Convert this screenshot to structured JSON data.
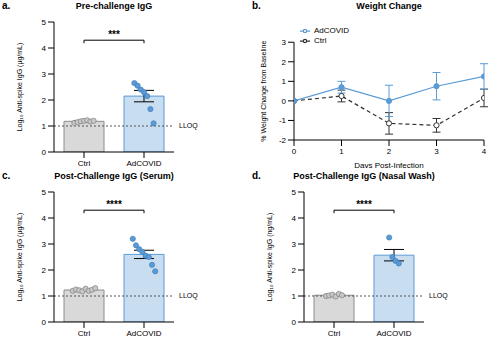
{
  "chart_data": [
    {
      "panel": "a.",
      "type": "bar",
      "title": "Pre-challenge IgG",
      "y_label": "Log₁₀ Anti-spike IgG (µg/mL)",
      "categories": [
        "Ctrl",
        "AdCOVID"
      ],
      "values": [
        1.18,
        2.15
      ],
      "errors": [
        0.03,
        0.22
      ],
      "points": [
        [
          1.12,
          1.15,
          1.18,
          1.2,
          1.22,
          1.17,
          1.2
        ],
        [
          2.65,
          2.55,
          2.4,
          2.3,
          2.15,
          1.65,
          1.1
        ]
      ],
      "colors": [
        "#d9d9d9",
        "#c9ddf1"
      ],
      "ylim": [
        0,
        5
      ],
      "yticks": [
        0,
        1,
        2,
        3,
        4,
        5
      ],
      "reference_line": {
        "value": 1,
        "label": "LLOQ"
      },
      "annotation": "***"
    },
    {
      "panel": "b.",
      "type": "line",
      "title": "Weight Change",
      "x_label": "Days Post-Infection",
      "y_label": "% Weight Change from Baseline",
      "x": [
        0,
        1,
        2,
        3,
        4
      ],
      "series": [
        {
          "name": "Ctrl",
          "color": "#333333",
          "line_style": "dashed",
          "marker": "open circle",
          "values": [
            0,
            0.25,
            -1.15,
            -1.25,
            0.15
          ],
          "errors": [
            0,
            0.3,
            0.55,
            0.35,
            0.45
          ]
        },
        {
          "name": "AdCOVID",
          "color": "#5b9bd5",
          "line_style": "solid",
          "marker": "circle",
          "values": [
            0,
            0.7,
            0.0,
            0.75,
            1.25
          ],
          "errors": [
            0,
            0.3,
            0.8,
            0.7,
            0.65
          ]
        }
      ],
      "xlim": [
        0,
        4
      ],
      "xticks": [
        0,
        1,
        2,
        3,
        4
      ],
      "ylim": [
        -2,
        3
      ],
      "yticks": [
        -2,
        -1,
        0,
        1,
        2,
        3
      ],
      "legend": "upper left"
    },
    {
      "panel": "c.",
      "type": "bar",
      "title": "Post-Challenge IgG (Serum)",
      "y_label": "Log₁₀ Anti-spike IgG (µg/mL)",
      "categories": [
        "Ctrl",
        "AdCOVID"
      ],
      "values": [
        1.23,
        2.6
      ],
      "errors": [
        0.02,
        0.16
      ],
      "points": [
        [
          1.2,
          1.25,
          1.22,
          1.18,
          1.28,
          1.2,
          1.24,
          1.3
        ],
        [
          3.2,
          2.95,
          2.8,
          2.7,
          2.55,
          2.5,
          2.2,
          1.95
        ]
      ],
      "colors": [
        "#d9d9d9",
        "#c9ddf1"
      ],
      "ylim": [
        0,
        5
      ],
      "yticks": [
        0,
        1,
        2,
        3,
        4,
        5
      ],
      "reference_line": {
        "value": 1,
        "label": "LLOQ"
      },
      "annotation": "****"
    },
    {
      "panel": "d.",
      "type": "bar",
      "title": "Post-Challenge IgG (Nasal Wash)",
      "y_label": "Log₁₀ Anti-spike IgG (ng/mL)",
      "categories": [
        "Ctrl",
        "AdCOVID"
      ],
      "values": [
        1.03,
        2.57
      ],
      "errors": [
        0.02,
        0.22
      ],
      "points": [
        [
          1.0,
          1.02,
          1.05,
          0.98,
          1.08,
          1.03
        ],
        [
          3.25,
          2.5,
          2.35,
          2.25
        ]
      ],
      "colors": [
        "#d9d9d9",
        "#c9ddf1"
      ],
      "ylim": [
        0,
        5
      ],
      "yticks": [
        0,
        1,
        2,
        3,
        4,
        5
      ],
      "reference_line": {
        "value": 1,
        "label": "LLOQ"
      },
      "annotation": "****"
    }
  ]
}
